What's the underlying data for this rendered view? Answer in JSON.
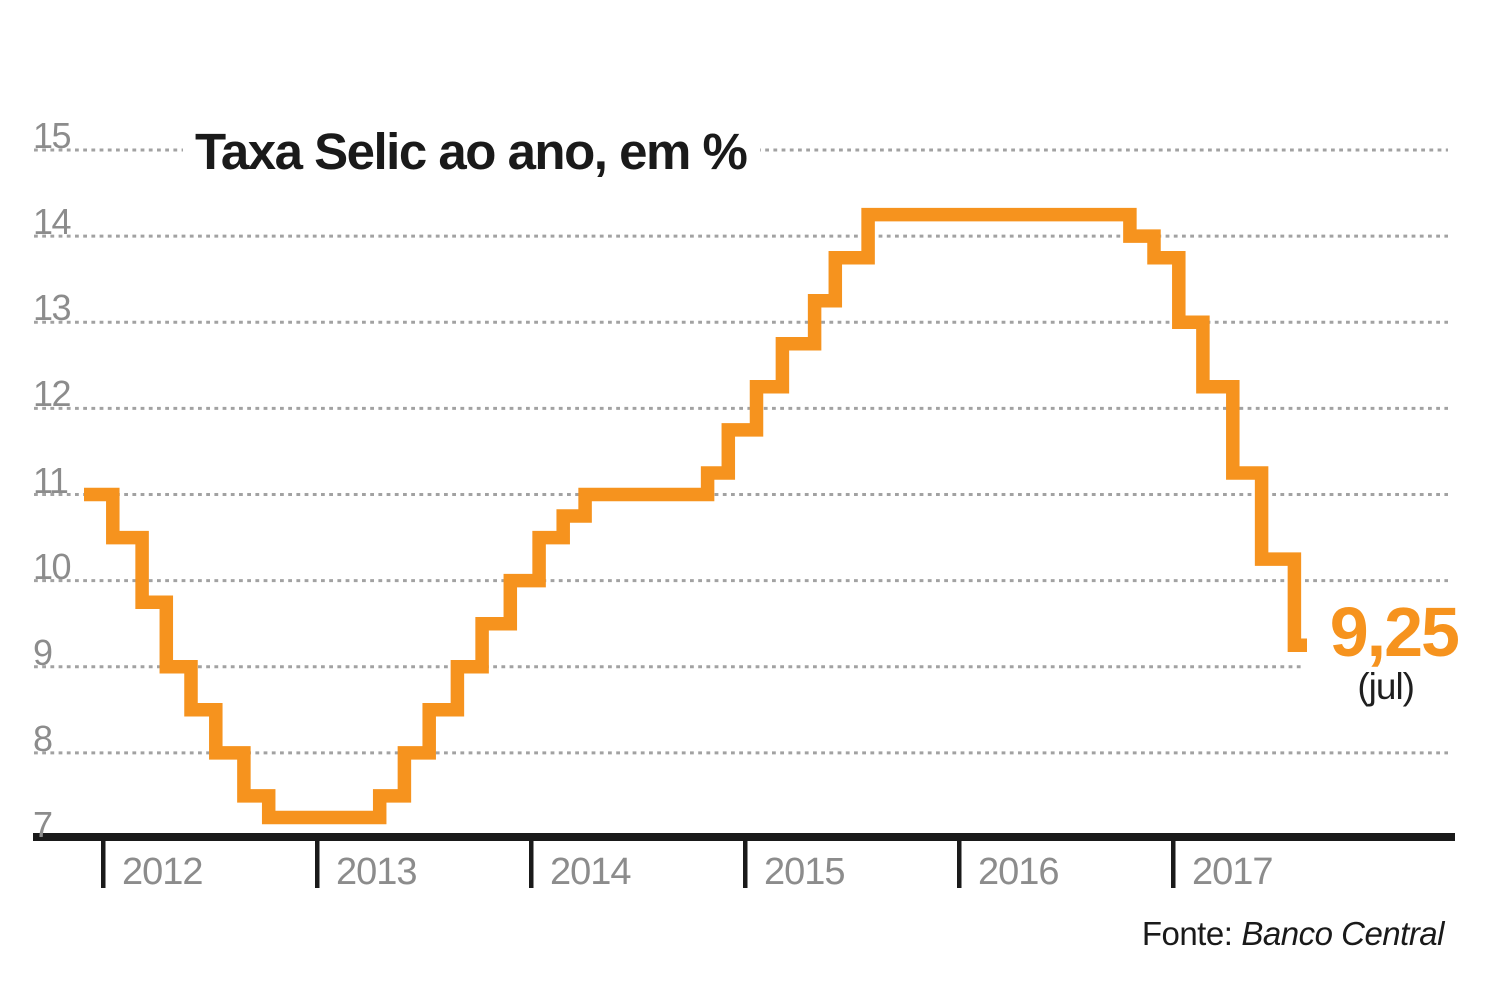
{
  "chart_data": {
    "type": "step-line",
    "title": "Taxa Selic ao ano, em %",
    "y_axis": {
      "ticks": [
        15,
        14,
        13,
        12,
        11,
        10,
        9,
        8,
        7
      ],
      "min": 7,
      "max": 15,
      "grid": "dotted"
    },
    "x_axis": {
      "years": [
        "2012",
        "2013",
        "2014",
        "2015",
        "2016",
        "2017"
      ],
      "range_start": "2011-11",
      "range_end": "2017-08"
    },
    "series": {
      "name": "Taxa Selic",
      "steps": [
        {
          "date": "2011-11-30",
          "rate": 11.0
        },
        {
          "date": "2012-01-18",
          "rate": 10.5
        },
        {
          "date": "2012-03-07",
          "rate": 9.75
        },
        {
          "date": "2012-04-18",
          "rate": 9.0
        },
        {
          "date": "2012-05-30",
          "rate": 8.5
        },
        {
          "date": "2012-07-11",
          "rate": 8.0
        },
        {
          "date": "2012-08-29",
          "rate": 7.5
        },
        {
          "date": "2012-10-10",
          "rate": 7.25
        },
        {
          "date": "2013-04-17",
          "rate": 7.5
        },
        {
          "date": "2013-05-29",
          "rate": 8.0
        },
        {
          "date": "2013-07-10",
          "rate": 8.5
        },
        {
          "date": "2013-08-28",
          "rate": 9.0
        },
        {
          "date": "2013-10-09",
          "rate": 9.5
        },
        {
          "date": "2013-11-27",
          "rate": 10.0
        },
        {
          "date": "2014-01-15",
          "rate": 10.5
        },
        {
          "date": "2014-02-26",
          "rate": 10.75
        },
        {
          "date": "2014-04-02",
          "rate": 11.0
        },
        {
          "date": "2014-10-29",
          "rate": 11.25
        },
        {
          "date": "2014-12-03",
          "rate": 11.75
        },
        {
          "date": "2015-01-21",
          "rate": 12.25
        },
        {
          "date": "2015-03-04",
          "rate": 12.75
        },
        {
          "date": "2015-04-29",
          "rate": 13.25
        },
        {
          "date": "2015-06-03",
          "rate": 13.75
        },
        {
          "date": "2015-07-29",
          "rate": 14.25
        },
        {
          "date": "2016-10-19",
          "rate": 14.0
        },
        {
          "date": "2016-11-30",
          "rate": 13.75
        },
        {
          "date": "2017-01-11",
          "rate": 13.0
        },
        {
          "date": "2017-02-22",
          "rate": 12.25
        },
        {
          "date": "2017-04-12",
          "rate": 11.25
        },
        {
          "date": "2017-05-31",
          "rate": 10.25
        },
        {
          "date": "2017-07-26",
          "rate": 9.25
        }
      ]
    },
    "end_label": {
      "value": "9,25",
      "note": "(jul)"
    },
    "source": {
      "prefix": "Fonte:",
      "name": "Banco Central"
    },
    "colors": {
      "line": "#f6931e",
      "title": "#1a1a1a",
      "axis": "#1a1a1a",
      "tick_labels": "#8c8c8c",
      "grid": "#a2a2a2",
      "end_value": "#f6931e",
      "end_note": "#1f1f1f"
    },
    "legend": "none"
  }
}
